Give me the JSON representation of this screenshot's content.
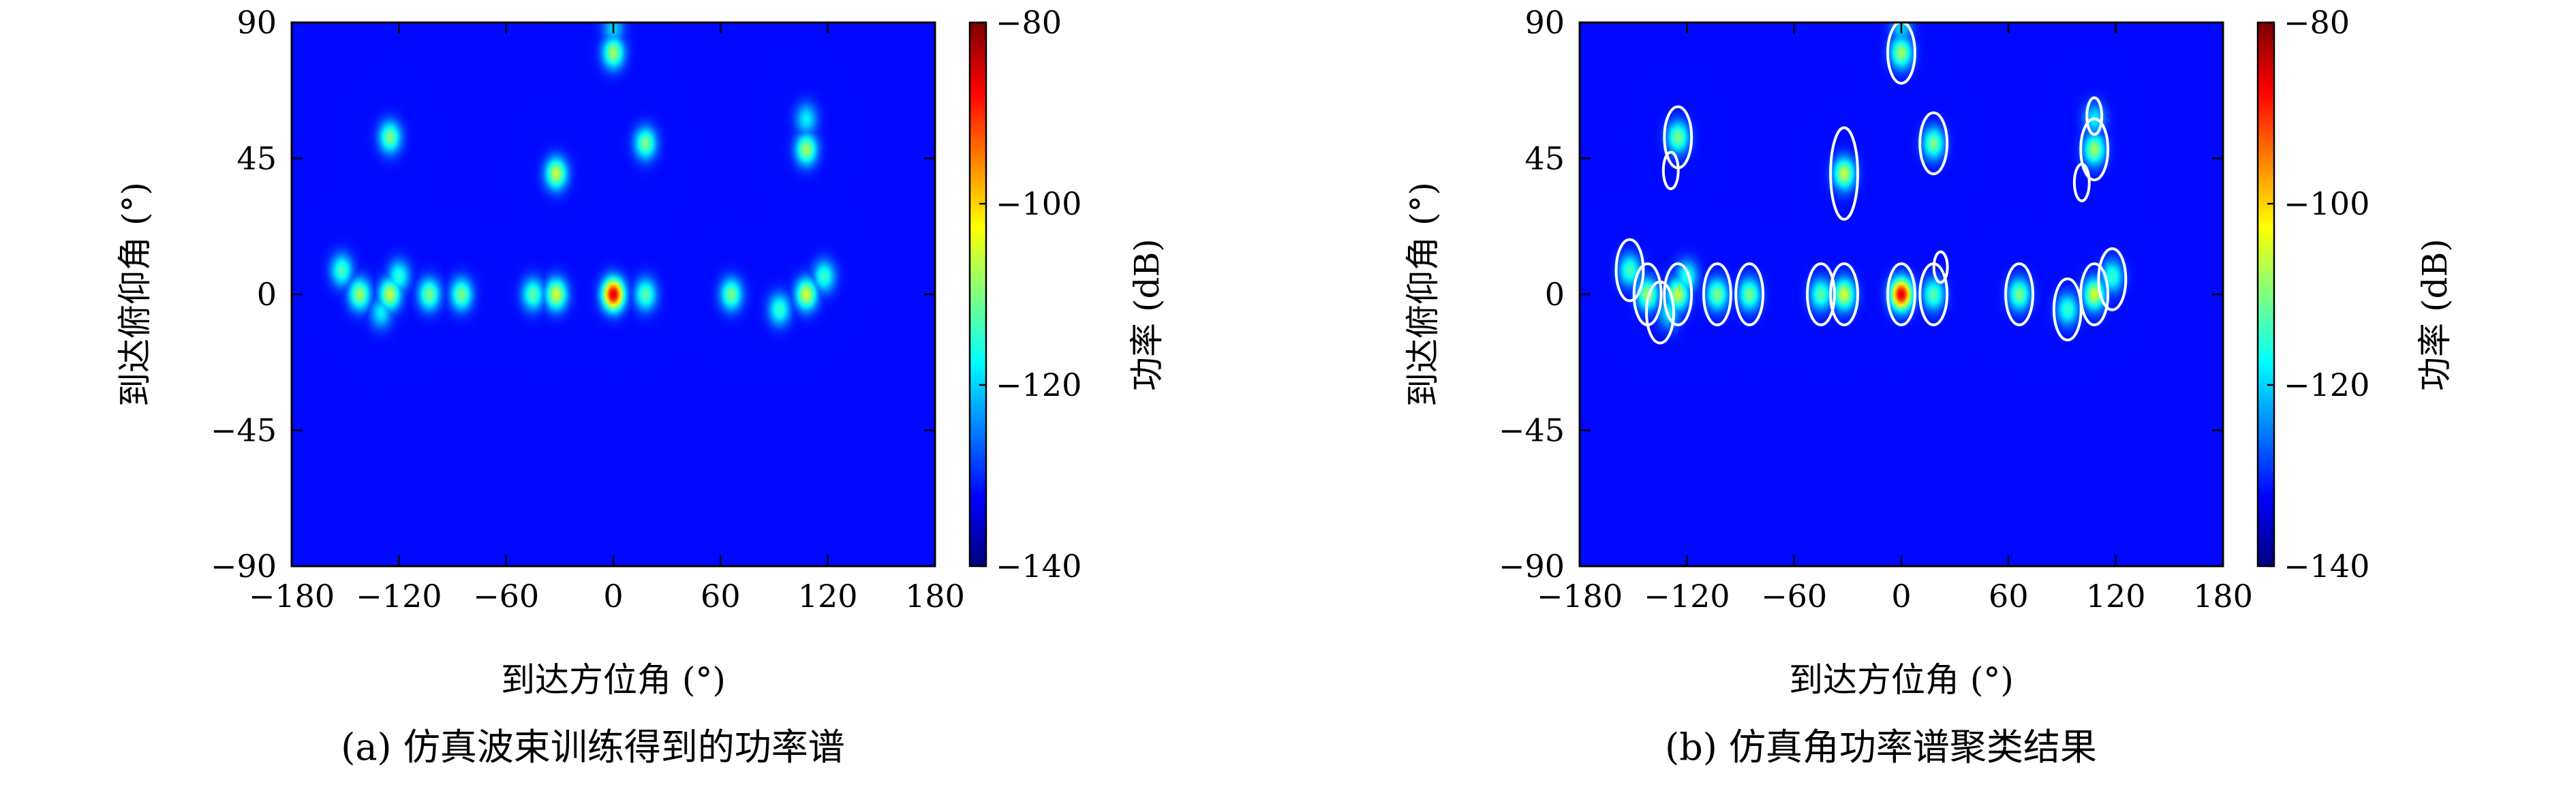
{
  "chart_data": [
    {
      "type": "heatmap",
      "caption": "(a) 仿真波束训练得到的功率谱",
      "xlabel": "到达方位角 (°)",
      "ylabel": "到达俯仰角 (°)",
      "colorbar_label": "功率 (dB)",
      "xlim": [
        -180,
        180
      ],
      "ylim": [
        -90,
        90
      ],
      "clim": [
        -140,
        -80
      ],
      "x_ticks": [
        -180,
        -120,
        -60,
        0,
        60,
        120,
        180
      ],
      "y_ticks": [
        -90,
        -45,
        0,
        45,
        90
      ],
      "colorbar_ticks": [
        -140,
        -120,
        -100,
        -80
      ],
      "x_tick_labels": [
        "−180",
        "−120",
        "−60",
        "0",
        "60",
        "120",
        "180"
      ],
      "y_tick_labels": [
        "−90",
        "−45",
        "0",
        "45",
        "90"
      ],
      "colorbar_tick_labels": [
        "−140",
        "−120",
        "−100",
        "−80"
      ],
      "background_level": -132,
      "colormap": "jet",
      "peaks": [
        {
          "az": 0,
          "el": 0,
          "peak_db": -85
        },
        {
          "az": -32,
          "el": 0,
          "peak_db": -105
        },
        {
          "az": 108,
          "el": 0,
          "peak_db": -105
        },
        {
          "az": -142,
          "el": 0,
          "peak_db": -108
        },
        {
          "az": -125,
          "el": 0,
          "peak_db": -106
        },
        {
          "az": -103,
          "el": 0,
          "peak_db": -110
        },
        {
          "az": -85,
          "el": 0,
          "peak_db": -110
        },
        {
          "az": -45,
          "el": 0,
          "peak_db": -112
        },
        {
          "az": 18,
          "el": 0,
          "peak_db": -112
        },
        {
          "az": 66,
          "el": 0,
          "peak_db": -110
        },
        {
          "az": 93,
          "el": -5,
          "peak_db": -114
        },
        {
          "az": -152,
          "el": 8,
          "peak_db": -113
        },
        {
          "az": -120,
          "el": 6,
          "peak_db": -115
        },
        {
          "az": 118,
          "el": 6,
          "peak_db": -114
        },
        {
          "az": -130,
          "el": -6,
          "peak_db": -118
        },
        {
          "az": -32,
          "el": 40,
          "peak_db": -106
        },
        {
          "az": -125,
          "el": 52,
          "peak_db": -110
        },
        {
          "az": 18,
          "el": 50,
          "peak_db": -110
        },
        {
          "az": 108,
          "el": 48,
          "peak_db": -108
        },
        {
          "az": 0,
          "el": 80,
          "peak_db": -108
        },
        {
          "az": 108,
          "el": 58,
          "peak_db": -118
        },
        {
          "az": 0,
          "el": 88,
          "peak_db": -120
        }
      ]
    },
    {
      "type": "heatmap",
      "caption": "(b) 仿真角功率谱聚类结果",
      "xlabel": "到达方位角 (°)",
      "ylabel": "到达俯仰角 (°)",
      "colorbar_label": "功率 (dB)",
      "xlim": [
        -180,
        180
      ],
      "ylim": [
        -90,
        90
      ],
      "clim": [
        -140,
        -80
      ],
      "x_ticks": [
        -180,
        -120,
        -60,
        0,
        60,
        120,
        180
      ],
      "y_ticks": [
        -90,
        -45,
        0,
        45,
        90
      ],
      "colorbar_ticks": [
        -140,
        -120,
        -100,
        -80
      ],
      "x_tick_labels": [
        "−180",
        "−120",
        "−60",
        "0",
        "60",
        "120",
        "180"
      ],
      "y_tick_labels": [
        "−90",
        "−45",
        "0",
        "45",
        "90"
      ],
      "colorbar_tick_labels": [
        "−140",
        "−120",
        "−100",
        "−80"
      ],
      "background_level": -132,
      "colormap": "jet",
      "cluster_outline_color": "#ffffff",
      "peaks": [
        {
          "az": 0,
          "el": 0,
          "peak_db": -85
        },
        {
          "az": -32,
          "el": 0,
          "peak_db": -105
        },
        {
          "az": 108,
          "el": 0,
          "peak_db": -105
        },
        {
          "az": -142,
          "el": 0,
          "peak_db": -108
        },
        {
          "az": -125,
          "el": 0,
          "peak_db": -106
        },
        {
          "az": -103,
          "el": 0,
          "peak_db": -110
        },
        {
          "az": -85,
          "el": 0,
          "peak_db": -110
        },
        {
          "az": -45,
          "el": 0,
          "peak_db": -112
        },
        {
          "az": 18,
          "el": 0,
          "peak_db": -112
        },
        {
          "az": 66,
          "el": 0,
          "peak_db": -110
        },
        {
          "az": 93,
          "el": -5,
          "peak_db": -114
        },
        {
          "az": -152,
          "el": 8,
          "peak_db": -113
        },
        {
          "az": -120,
          "el": 6,
          "peak_db": -115
        },
        {
          "az": 118,
          "el": 6,
          "peak_db": -114
        },
        {
          "az": -130,
          "el": -6,
          "peak_db": -118
        },
        {
          "az": -32,
          "el": 40,
          "peak_db": -106
        },
        {
          "az": -125,
          "el": 52,
          "peak_db": -110
        },
        {
          "az": 18,
          "el": 50,
          "peak_db": -110
        },
        {
          "az": 108,
          "el": 48,
          "peak_db": -108
        },
        {
          "az": 0,
          "el": 80,
          "peak_db": -108
        },
        {
          "az": 108,
          "el": 58,
          "peak_db": -118
        },
        {
          "az": 0,
          "el": 88,
          "peak_db": -120
        }
      ],
      "clusters": [
        {
          "az": 0,
          "el": 0
        },
        {
          "az": -32,
          "el": 0
        },
        {
          "az": 108,
          "el": 0
        },
        {
          "az": -142,
          "el": 0
        },
        {
          "az": -125,
          "el": 0
        },
        {
          "az": -103,
          "el": 0
        },
        {
          "az": -85,
          "el": 0
        },
        {
          "az": -45,
          "el": 0
        },
        {
          "az": 18,
          "el": 0
        },
        {
          "az": 66,
          "el": 0
        },
        {
          "az": 93,
          "el": -5
        },
        {
          "az": -152,
          "el": 8
        },
        {
          "az": 118,
          "el": 5
        },
        {
          "az": -135,
          "el": -6
        },
        {
          "az": 22,
          "el": 9
        },
        {
          "az": -32,
          "el": 40
        },
        {
          "az": -125,
          "el": 52
        },
        {
          "az": 18,
          "el": 50
        },
        {
          "az": 108,
          "el": 48
        },
        {
          "az": 0,
          "el": 80
        },
        {
          "az": 108,
          "el": 59
        },
        {
          "az": -129,
          "el": 41
        },
        {
          "az": 101,
          "el": 37
        }
      ]
    }
  ]
}
